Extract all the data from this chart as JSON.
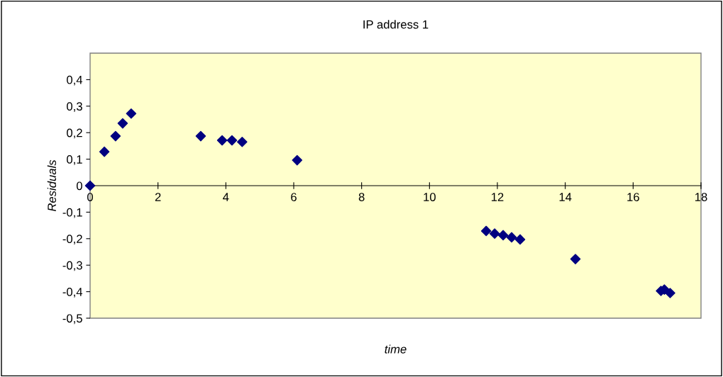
{
  "chart_data": {
    "type": "scatter",
    "title": "IP address 1",
    "xlabel": "time",
    "ylabel": "Residuals",
    "x": [
      0,
      0.42,
      0.75,
      0.96,
      1.21,
      3.26,
      3.89,
      4.18,
      4.48,
      6.1,
      11.67,
      11.92,
      12.17,
      12.42,
      12.67,
      14.3,
      16.82,
      16.92,
      17.09
    ],
    "series": [
      {
        "color": "#000080",
        "values": [
          0,
          0.128,
          0.187,
          0.235,
          0.272,
          0.187,
          0.171,
          0.171,
          0.165,
          0.096,
          -0.171,
          -0.181,
          -0.187,
          -0.195,
          -0.203,
          -0.277,
          -0.397,
          -0.392,
          -0.405
        ]
      }
    ],
    "marker": "diamond",
    "grid": false,
    "legend": false,
    "xlim": [
      0,
      18
    ],
    "xticks": [
      0,
      2,
      4,
      6,
      8,
      10,
      12,
      14,
      16,
      18
    ],
    "ylim": [
      -0.5,
      0.5
    ],
    "yticks": [
      {
        "value": -0.5,
        "label": "-0,5"
      },
      {
        "value": -0.4,
        "label": "-0,4"
      },
      {
        "value": -0.3,
        "label": "-0,3"
      },
      {
        "value": -0.2,
        "label": "-0,2"
      },
      {
        "value": -0.1,
        "label": "-0,1"
      },
      {
        "value": 0,
        "label": "0"
      },
      {
        "value": 0.1,
        "label": "0,1"
      },
      {
        "value": 0.2,
        "label": "0,2"
      },
      {
        "value": 0.3,
        "label": "0,3"
      },
      {
        "value": 0.4,
        "label": "0,4"
      }
    ]
  }
}
